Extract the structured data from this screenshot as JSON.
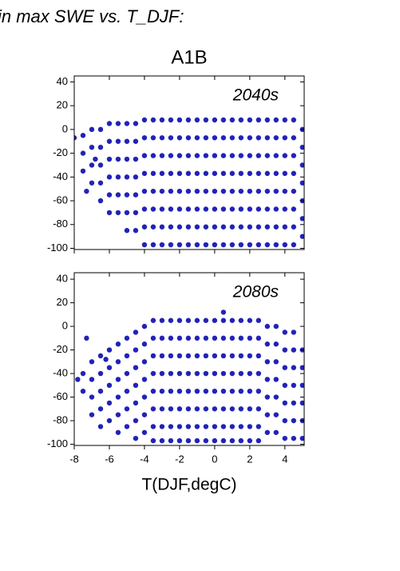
{
  "header": {
    "text": "in max SWE vs. T_DJF:",
    "title": "A1B"
  },
  "chart_data": [
    {
      "type": "scatter",
      "annotation": "2040s",
      "color": "#2222b8",
      "xlim": [
        -8,
        5.1
      ],
      "ylim": [
        -101,
        45
      ],
      "xticks": [
        -8,
        -6,
        -4,
        -2,
        0,
        2,
        4
      ],
      "yticks": [
        -100,
        -80,
        -60,
        -40,
        -20,
        0,
        20,
        40
      ],
      "x": [
        -8,
        -7.3,
        -6.8,
        -7.5,
        -7.5,
        -7.5,
        -7,
        -7,
        -7,
        -7,
        -6.5,
        -6.5,
        -6.5,
        -6.5,
        -6.5,
        -6,
        -6,
        -6,
        -6,
        -6,
        -6,
        -5.5,
        -5.5,
        -5.5,
        -5.5,
        -5.5,
        -5.5,
        -5,
        -5,
        -5,
        -5,
        -5,
        -5,
        -5,
        -4.5,
        -4.5,
        -4.5,
        -4.5,
        -4.5,
        -4.5,
        -4.5,
        -4,
        -4,
        -4,
        -4,
        -4,
        -4,
        -4,
        -4,
        -3.5,
        -3.5,
        -3.5,
        -3.5,
        -3.5,
        -3.5,
        -3.5,
        -3.5,
        -3,
        -3,
        -3,
        -3,
        -3,
        -3,
        -3,
        -3,
        -2.5,
        -2.5,
        -2.5,
        -2.5,
        -2.5,
        -2.5,
        -2.5,
        -2.5,
        -2,
        -2,
        -2,
        -2,
        -2,
        -2,
        -2,
        -2,
        -1.5,
        -1.5,
        -1.5,
        -1.5,
        -1.5,
        -1.5,
        -1.5,
        -1.5,
        -1,
        -1,
        -1,
        -1,
        -1,
        -1,
        -1,
        -1,
        -0.5,
        -0.5,
        -0.5,
        -0.5,
        -0.5,
        -0.5,
        -0.5,
        -0.5,
        0,
        0,
        0,
        0,
        0,
        0,
        0,
        0,
        0.5,
        0.5,
        0.5,
        0.5,
        0.5,
        0.5,
        0.5,
        0.5,
        1,
        1,
        1,
        1,
        1,
        1,
        1,
        1,
        1.5,
        1.5,
        1.5,
        1.5,
        1.5,
        1.5,
        1.5,
        1.5,
        2,
        2,
        2,
        2,
        2,
        2,
        2,
        2,
        2.5,
        2.5,
        2.5,
        2.5,
        2.5,
        2.5,
        2.5,
        2.5,
        3,
        3,
        3,
        3,
        3,
        3,
        3,
        3,
        3.5,
        3.5,
        3.5,
        3.5,
        3.5,
        3.5,
        3.5,
        3.5,
        4,
        4,
        4,
        4,
        4,
        4,
        4,
        4,
        4.5,
        4.5,
        4.5,
        4.5,
        4.5,
        4.5,
        4.5,
        4.5,
        5,
        5,
        5,
        5,
        5,
        5,
        5
      ],
      "values": [
        -7,
        -52,
        -25,
        -5,
        -20,
        -35,
        0,
        -15,
        -30,
        -45,
        0,
        -15,
        -30,
        -45,
        -60,
        5,
        -10,
        -25,
        -40,
        -55,
        -70,
        5,
        -10,
        -25,
        -40,
        -55,
        -70,
        5,
        -10,
        -25,
        -40,
        -55,
        -70,
        -85,
        5,
        -10,
        -25,
        -40,
        -55,
        -70,
        -85,
        8,
        -7,
        -22,
        -37,
        -52,
        -67,
        -82,
        -97,
        8,
        -7,
        -22,
        -37,
        -52,
        -67,
        -82,
        -97,
        8,
        -7,
        -22,
        -37,
        -52,
        -67,
        -82,
        -97,
        8,
        -7,
        -22,
        -37,
        -52,
        -67,
        -82,
        -97,
        8,
        -7,
        -22,
        -37,
        -52,
        -67,
        -82,
        -97,
        8,
        -7,
        -22,
        -37,
        -52,
        -67,
        -82,
        -97,
        8,
        -7,
        -22,
        -37,
        -52,
        -67,
        -82,
        -97,
        8,
        -7,
        -22,
        -37,
        -52,
        -67,
        -82,
        -97,
        8,
        -7,
        -22,
        -37,
        -52,
        -67,
        -82,
        -97,
        8,
        -7,
        -22,
        -37,
        -52,
        -67,
        -82,
        -97,
        8,
        -7,
        -22,
        -37,
        -52,
        -67,
        -82,
        -97,
        8,
        -7,
        -22,
        -37,
        -52,
        -67,
        -82,
        -97,
        8,
        -7,
        -22,
        -37,
        -52,
        -67,
        -82,
        -97,
        8,
        -7,
        -22,
        -37,
        -52,
        -67,
        -82,
        -97,
        8,
        -7,
        -22,
        -37,
        -52,
        -67,
        -82,
        -97,
        8,
        -7,
        -22,
        -37,
        -52,
        -67,
        -82,
        -97,
        8,
        -7,
        -22,
        -37,
        -52,
        -67,
        -82,
        -97,
        8,
        -7,
        -22,
        -37,
        -52,
        -67,
        -82,
        -97,
        0,
        -15,
        -30,
        -45,
        -60,
        -75,
        -90
      ]
    },
    {
      "type": "scatter",
      "annotation": "2080s",
      "color": "#2222b8",
      "xlabel": "T(DJF,degC)",
      "xlim": [
        -8,
        5.1
      ],
      "ylim": [
        -101,
        45.5
      ],
      "xticks": [
        -8,
        -6,
        -4,
        -2,
        0,
        2,
        4
      ],
      "yticks": [
        -100,
        -80,
        -60,
        -40,
        -20,
        0,
        20,
        40
      ],
      "x": [
        -7.8,
        -7.3,
        -6.2,
        0.5,
        -7.5,
        -7.5,
        -7,
        -7,
        -7,
        -7,
        -6.5,
        -6.5,
        -6.5,
        -6.5,
        -6.5,
        -6,
        -6,
        -6,
        -6,
        -6,
        -5.5,
        -5.5,
        -5.5,
        -5.5,
        -5.5,
        -5.5,
        -5,
        -5,
        -5,
        -5,
        -5,
        -5,
        -4.5,
        -4.5,
        -4.5,
        -4.5,
        -4.5,
        -4.5,
        -4.5,
        -4,
        -4,
        -4,
        -4,
        -4,
        -4,
        -4,
        -3.5,
        -3.5,
        -3.5,
        -3.5,
        -3.5,
        -3.5,
        -3.5,
        -3.5,
        -3,
        -3,
        -3,
        -3,
        -3,
        -3,
        -3,
        -3,
        -2.5,
        -2.5,
        -2.5,
        -2.5,
        -2.5,
        -2.5,
        -2.5,
        -2.5,
        -2,
        -2,
        -2,
        -2,
        -2,
        -2,
        -2,
        -2,
        -1.5,
        -1.5,
        -1.5,
        -1.5,
        -1.5,
        -1.5,
        -1.5,
        -1.5,
        -1,
        -1,
        -1,
        -1,
        -1,
        -1,
        -1,
        -1,
        -0.5,
        -0.5,
        -0.5,
        -0.5,
        -0.5,
        -0.5,
        -0.5,
        -0.5,
        0,
        0,
        0,
        0,
        0,
        0,
        0,
        0,
        0.5,
        0.5,
        0.5,
        0.5,
        0.5,
        0.5,
        0.5,
        0.5,
        1,
        1,
        1,
        1,
        1,
        1,
        1,
        1,
        1.5,
        1.5,
        1.5,
        1.5,
        1.5,
        1.5,
        1.5,
        1.5,
        2,
        2,
        2,
        2,
        2,
        2,
        2,
        2,
        2.5,
        2.5,
        2.5,
        2.5,
        2.5,
        2.5,
        2.5,
        2.5,
        3,
        3,
        3,
        3,
        3,
        3,
        3,
        3.5,
        3.5,
        3.5,
        3.5,
        3.5,
        3.5,
        3.5,
        4,
        4,
        4,
        4,
        4,
        4,
        4,
        4.5,
        4.5,
        4.5,
        4.5,
        4.5,
        4.5,
        4.5,
        5,
        5,
        5,
        5,
        5,
        5
      ],
      "values": [
        -45,
        -10,
        -28,
        12,
        -40,
        -55,
        -30,
        -45,
        -60,
        -75,
        -25,
        -40,
        -55,
        -70,
        -85,
        -20,
        -35,
        -50,
        -65,
        -80,
        -15,
        -30,
        -45,
        -60,
        -75,
        -90,
        -10,
        -25,
        -40,
        -55,
        -70,
        -85,
        -5,
        -20,
        -35,
        -50,
        -65,
        -80,
        -95,
        0,
        -15,
        -30,
        -45,
        -60,
        -75,
        -90,
        5,
        -10,
        -25,
        -40,
        -55,
        -70,
        -85,
        -97,
        5,
        -10,
        -25,
        -40,
        -55,
        -70,
        -85,
        -97,
        5,
        -10,
        -25,
        -40,
        -55,
        -70,
        -85,
        -97,
        5,
        -10,
        -25,
        -40,
        -55,
        -70,
        -85,
        -97,
        5,
        -10,
        -25,
        -40,
        -55,
        -70,
        -85,
        -97,
        5,
        -10,
        -25,
        -40,
        -55,
        -70,
        -85,
        -97,
        5,
        -10,
        -25,
        -40,
        -55,
        -70,
        -85,
        -97,
        5,
        -10,
        -25,
        -40,
        -55,
        -70,
        -85,
        -97,
        5,
        -10,
        -25,
        -40,
        -55,
        -70,
        -85,
        -97,
        5,
        -10,
        -25,
        -40,
        -55,
        -70,
        -85,
        -97,
        5,
        -10,
        -25,
        -40,
        -55,
        -70,
        -85,
        -97,
        5,
        -10,
        -25,
        -40,
        -55,
        -70,
        -85,
        -97,
        5,
        -10,
        -25,
        -40,
        -55,
        -70,
        -85,
        -97,
        0,
        -15,
        -30,
        -45,
        -60,
        -75,
        -90,
        0,
        -15,
        -30,
        -45,
        -60,
        -75,
        -90,
        -5,
        -20,
        -35,
        -50,
        -65,
        -80,
        -95,
        -5,
        -20,
        -35,
        -50,
        -65,
        -80,
        -95,
        -20,
        -35,
        -50,
        -65,
        -80,
        -95
      ]
    }
  ]
}
